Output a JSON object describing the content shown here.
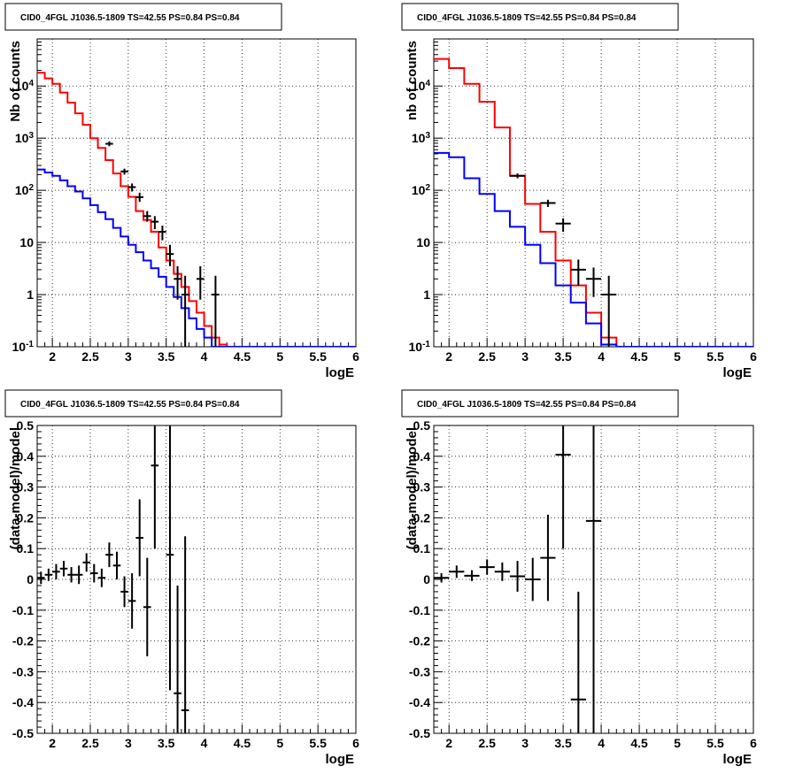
{
  "chart_data": [
    {
      "type": "line",
      "title": "CID0_4FGL J1036.5-1809 TS=42.55 PS=0.84 PS=0.84",
      "xlabel": "logE",
      "ylabel": "Nb of counts",
      "xlim": [
        1.8,
        6
      ],
      "ylim": [
        0.1,
        80000
      ],
      "ylog": true,
      "grid": true,
      "xticks": [
        "2",
        "2.5",
        "3",
        "3.5",
        "4",
        "4.5",
        "5",
        "5.5",
        "6"
      ],
      "yticks": [
        "10^-1",
        "1",
        "10",
        "10^2",
        "10^3",
        "10^4"
      ],
      "step_edges": [
        1.8,
        1.9,
        2.0,
        2.1,
        2.2,
        2.3,
        2.4,
        2.5,
        2.6,
        2.7,
        2.8,
        2.9,
        3.0,
        3.1,
        3.2,
        3.3,
        3.4,
        3.5,
        3.6,
        3.7,
        3.8,
        3.9,
        4.0,
        4.1,
        4.2,
        4.3,
        4.4,
        6.0
      ],
      "series": [
        {
          "color": "#ff0000",
          "values": [
            18000,
            14000,
            11000,
            7500,
            4800,
            3000,
            1800,
            1000,
            650,
            380,
            210,
            120,
            75,
            40,
            27,
            16,
            8,
            4.5,
            2.5,
            1.4,
            0.75,
            0.45,
            0.25,
            0.15,
            0.11,
            0.1,
            0.1
          ]
        },
        {
          "color": "#0000ff",
          "values": [
            250,
            220,
            190,
            155,
            120,
            95,
            70,
            52,
            38,
            28,
            19,
            13,
            9,
            6.5,
            4.5,
            3.2,
            2.2,
            1.4,
            0.9,
            0.55,
            0.35,
            0.22,
            0.15,
            0.1,
            0.1,
            0.1,
            0.1
          ]
        }
      ],
      "points": [
        {
          "x": 2.75,
          "y": 780,
          "xerr": 0.05,
          "ylo": 700,
          "yhi": 870
        },
        {
          "x": 2.95,
          "y": 230,
          "xerr": 0.05,
          "ylo": 200,
          "yhi": 260
        },
        {
          "x": 3.05,
          "y": 115,
          "xerr": 0.05,
          "ylo": 95,
          "yhi": 135
        },
        {
          "x": 3.15,
          "y": 74,
          "xerr": 0.05,
          "ylo": 60,
          "yhi": 90
        },
        {
          "x": 3.25,
          "y": 32,
          "xerr": 0.05,
          "ylo": 25,
          "yhi": 40
        },
        {
          "x": 3.35,
          "y": 25,
          "xerr": 0.05,
          "ylo": 18,
          "yhi": 32
        },
        {
          "x": 3.45,
          "y": 16,
          "xerr": 0.05,
          "ylo": 11,
          "yhi": 21
        },
        {
          "x": 3.55,
          "y": 6,
          "xerr": 0.05,
          "ylo": 3.5,
          "yhi": 9
        },
        {
          "x": 3.65,
          "y": 2,
          "xerr": 0.05,
          "ylo": 0.8,
          "yhi": 3.5
        },
        {
          "x": 3.75,
          "y": 1,
          "xerr": 0.05,
          "ylo": 0.1,
          "yhi": 2.3
        },
        {
          "x": 3.95,
          "y": 2,
          "xerr": 0.05,
          "ylo": 0.8,
          "yhi": 3.5
        },
        {
          "x": 4.15,
          "y": 1,
          "xerr": 0.05,
          "ylo": 0.1,
          "yhi": 2.3
        }
      ]
    },
    {
      "type": "line",
      "title": "CID0_4FGL J1036.5-1809 TS=42.55 PS=0.84 PS=0.84",
      "xlabel": "logE",
      "ylabel": "nb of counts",
      "xlim": [
        1.8,
        6
      ],
      "ylim": [
        0.1,
        80000
      ],
      "ylog": true,
      "grid": true,
      "xticks": [
        "2",
        "2.5",
        "3",
        "3.5",
        "4",
        "4.5",
        "5",
        "5.5",
        "6"
      ],
      "yticks": [
        "10^-1",
        "1",
        "10",
        "10^2",
        "10^3",
        "10^4"
      ],
      "step_edges": [
        1.8,
        2.0,
        2.2,
        2.4,
        2.6,
        2.8,
        3.0,
        3.2,
        3.4,
        3.6,
        3.8,
        4.0,
        4.2,
        4.4,
        6.0
      ],
      "series": [
        {
          "color": "#ff0000",
          "values": [
            33000,
            22000,
            11000,
            5000,
            1600,
            190,
            55,
            16,
            4.5,
            1.5,
            0.45,
            0.15,
            0.1,
            0.1
          ]
        },
        {
          "color": "#0000ff",
          "values": [
            520,
            430,
            170,
            85,
            40,
            20,
            9,
            4,
            1.5,
            0.7,
            0.28,
            0.11,
            0.1,
            0.1
          ]
        }
      ],
      "points": [
        {
          "x": 2.9,
          "y": 190,
          "xerr": 0.1,
          "ylo": 170,
          "yhi": 210
        },
        {
          "x": 3.3,
          "y": 57,
          "xerr": 0.1,
          "ylo": 48,
          "yhi": 66
        },
        {
          "x": 3.5,
          "y": 23,
          "xerr": 0.1,
          "ylo": 16,
          "yhi": 29
        },
        {
          "x": 3.7,
          "y": 3,
          "xerr": 0.1,
          "ylo": 1.5,
          "yhi": 4.7
        },
        {
          "x": 3.9,
          "y": 2,
          "xerr": 0.1,
          "ylo": 0.9,
          "yhi": 3.3
        },
        {
          "x": 4.1,
          "y": 1,
          "xerr": 0.1,
          "ylo": 0.1,
          "yhi": 2.3
        }
      ]
    },
    {
      "type": "scatter",
      "title": "CID0_4FGL J1036.5-1809 TS=42.55 PS=0.84 PS=0.84",
      "xlabel": "logE",
      "ylabel": "(data-model)/model",
      "xlim": [
        1.8,
        6
      ],
      "ylim": [
        -0.5,
        0.5
      ],
      "ylog": false,
      "grid": true,
      "xticks": [
        "2",
        "2.5",
        "3",
        "3.5",
        "4",
        "4.5",
        "5",
        "5.5",
        "6"
      ],
      "yticks": [
        "-0.5",
        "-0.4",
        "-0.3",
        "-0.2",
        "-0.1",
        "0",
        "0.1",
        "0.2",
        "0.3",
        "0.4",
        "0.5"
      ],
      "points": [
        {
          "x": 1.85,
          "y": 0.005,
          "xerr": 0.05,
          "ylo": -0.015,
          "yhi": 0.025
        },
        {
          "x": 1.95,
          "y": 0.015,
          "xerr": 0.05,
          "ylo": -0.005,
          "yhi": 0.035
        },
        {
          "x": 2.05,
          "y": 0.025,
          "xerr": 0.05,
          "ylo": 0.0,
          "yhi": 0.05
        },
        {
          "x": 2.15,
          "y": 0.035,
          "xerr": 0.05,
          "ylo": 0.01,
          "yhi": 0.06
        },
        {
          "x": 2.25,
          "y": 0.015,
          "xerr": 0.05,
          "ylo": -0.01,
          "yhi": 0.04
        },
        {
          "x": 2.35,
          "y": 0.015,
          "xerr": 0.05,
          "ylo": -0.015,
          "yhi": 0.045
        },
        {
          "x": 2.45,
          "y": 0.055,
          "xerr": 0.05,
          "ylo": 0.025,
          "yhi": 0.085
        },
        {
          "x": 2.55,
          "y": 0.02,
          "xerr": 0.05,
          "ylo": -0.01,
          "yhi": 0.05
        },
        {
          "x": 2.65,
          "y": 0.005,
          "xerr": 0.05,
          "ylo": -0.025,
          "yhi": 0.035
        },
        {
          "x": 2.75,
          "y": 0.08,
          "xerr": 0.05,
          "ylo": 0.04,
          "yhi": 0.12
        },
        {
          "x": 2.85,
          "y": 0.045,
          "xerr": 0.05,
          "ylo": 0.0,
          "yhi": 0.09
        },
        {
          "x": 2.95,
          "y": -0.04,
          "xerr": 0.05,
          "ylo": -0.09,
          "yhi": 0.01
        },
        {
          "x": 3.05,
          "y": -0.07,
          "xerr": 0.05,
          "ylo": -0.16,
          "yhi": 0.02
        },
        {
          "x": 3.15,
          "y": 0.135,
          "xerr": 0.05,
          "ylo": 0.01,
          "yhi": 0.26
        },
        {
          "x": 3.25,
          "y": -0.09,
          "xerr": 0.05,
          "ylo": -0.25,
          "yhi": 0.07
        },
        {
          "x": 3.35,
          "y": 0.37,
          "xerr": 0.05,
          "ylo": 0.1,
          "yhi": 0.5
        },
        {
          "x": 3.55,
          "y": 0.08,
          "xerr": 0.05,
          "ylo": -0.36,
          "yhi": 0.5
        },
        {
          "x": 3.65,
          "y": -0.37,
          "xerr": 0.05,
          "ylo": -0.5,
          "yhi": -0.02
        },
        {
          "x": 3.75,
          "y": -0.425,
          "xerr": 0.05,
          "ylo": -0.5,
          "yhi": 0.14
        }
      ]
    },
    {
      "type": "scatter",
      "title": "CID0_4FGL J1036.5-1809 TS=42.55 PS=0.84 PS=0.84",
      "xlabel": "logE",
      "ylabel": "(data-model)/model",
      "xlim": [
        1.8,
        6
      ],
      "ylim": [
        -0.5,
        0.5
      ],
      "ylog": false,
      "grid": true,
      "xticks": [
        "2",
        "2.5",
        "3",
        "3.5",
        "4",
        "4.5",
        "5",
        "5.5",
        "6"
      ],
      "yticks": [
        "-0.5",
        "-0.4",
        "-0.3",
        "-0.2",
        "-0.1",
        "0",
        "0.1",
        "0.2",
        "0.3",
        "0.4",
        "0.5"
      ],
      "points": [
        {
          "x": 1.9,
          "y": 0.005,
          "xerr": 0.1,
          "ylo": -0.01,
          "yhi": 0.02
        },
        {
          "x": 2.1,
          "y": 0.025,
          "xerr": 0.1,
          "ylo": 0.005,
          "yhi": 0.045
        },
        {
          "x": 2.3,
          "y": 0.012,
          "xerr": 0.1,
          "ylo": -0.005,
          "yhi": 0.03
        },
        {
          "x": 2.5,
          "y": 0.04,
          "xerr": 0.1,
          "ylo": 0.015,
          "yhi": 0.065
        },
        {
          "x": 2.7,
          "y": 0.025,
          "xerr": 0.1,
          "ylo": -0.005,
          "yhi": 0.055
        },
        {
          "x": 2.9,
          "y": 0.01,
          "xerr": 0.1,
          "ylo": -0.04,
          "yhi": 0.06
        },
        {
          "x": 3.1,
          "y": 0.0,
          "xerr": 0.1,
          "ylo": -0.07,
          "yhi": 0.07
        },
        {
          "x": 3.3,
          "y": 0.07,
          "xerr": 0.1,
          "ylo": -0.07,
          "yhi": 0.21
        },
        {
          "x": 3.5,
          "y": 0.405,
          "xerr": 0.1,
          "ylo": 0.1,
          "yhi": 0.5
        },
        {
          "x": 3.7,
          "y": -0.39,
          "xerr": 0.1,
          "ylo": -0.5,
          "yhi": -0.04
        },
        {
          "x": 3.9,
          "y": 0.19,
          "xerr": 0.1,
          "ylo": -0.5,
          "yhi": 0.5
        }
      ]
    }
  ]
}
